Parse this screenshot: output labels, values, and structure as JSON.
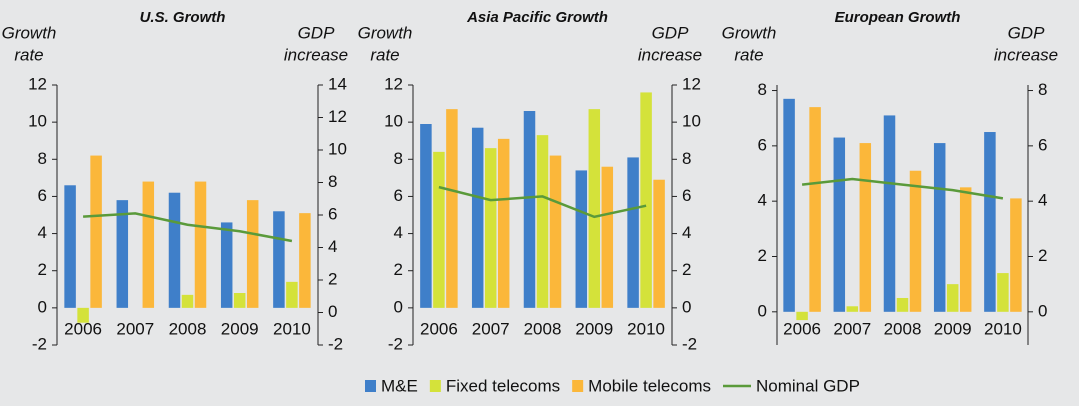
{
  "chart_data": [
    {
      "type": "bar",
      "title": "U.S. Growth",
      "y_label": [
        "Growth",
        "rate"
      ],
      "y2_label": [
        "GDP",
        "increase"
      ],
      "categories": [
        "2006",
        "2007",
        "2008",
        "2009",
        "2010"
      ],
      "ylim": [
        -2,
        12
      ],
      "yticks": [
        -2,
        0,
        2,
        4,
        6,
        8,
        10,
        12
      ],
      "y2lim": [
        -2,
        14
      ],
      "y2ticks": [
        -2,
        0,
        2,
        4,
        6,
        8,
        10,
        12,
        14
      ],
      "series": [
        {
          "name": "M&E",
          "color": "#3f7fc9",
          "values": [
            6.6,
            5.8,
            6.2,
            4.6,
            5.2
          ]
        },
        {
          "name": "Fixed telecoms",
          "color": "#d4e23a",
          "values": [
            -0.8,
            0,
            0.7,
            0.8,
            1.4
          ]
        },
        {
          "name": "Mobile telecoms",
          "color": "#fbb73a",
          "values": [
            8.2,
            6.8,
            6.8,
            5.8,
            5.1
          ]
        },
        {
          "name": "Nominal GDP",
          "color": "#5a9a3a",
          "type": "line",
          "axis": "y2",
          "values": [
            5.9,
            6.1,
            5.4,
            5.0,
            4.4
          ]
        }
      ]
    },
    {
      "type": "bar",
      "title": "Asia Pacific Growth",
      "y_label": [
        "Growth",
        "rate"
      ],
      "y2_label": [
        "GDP",
        "increase"
      ],
      "categories": [
        "2006",
        "2007",
        "2008",
        "2009",
        "2010"
      ],
      "ylim": [
        -2,
        12
      ],
      "yticks": [
        -2,
        0,
        2,
        4,
        6,
        8,
        10,
        12
      ],
      "y2lim": [
        -2,
        12
      ],
      "y2ticks": [
        -2,
        0,
        2,
        4,
        6,
        8,
        10,
        12
      ],
      "series": [
        {
          "name": "M&E",
          "color": "#3f7fc9",
          "values": [
            9.9,
            9.7,
            10.6,
            7.4,
            8.1
          ]
        },
        {
          "name": "Fixed telecoms",
          "color": "#d4e23a",
          "values": [
            8.4,
            8.6,
            9.3,
            10.7,
            11.6
          ]
        },
        {
          "name": "Mobile telecoms",
          "color": "#fbb73a",
          "values": [
            10.7,
            9.1,
            8.2,
            7.6,
            6.9
          ]
        },
        {
          "name": "Nominal GDP",
          "color": "#5a9a3a",
          "type": "line",
          "axis": "y2",
          "values": [
            6.5,
            5.8,
            6.0,
            4.9,
            5.5
          ]
        }
      ]
    },
    {
      "type": "bar",
      "title": "European Growth",
      "y_label": [
        "Growth",
        "rate"
      ],
      "y2_label": [
        "GDP",
        "increase"
      ],
      "categories": [
        "2006",
        "2007",
        "2008",
        "2009",
        "2010"
      ],
      "ylim": [
        -1.2,
        8.2
      ],
      "yticks": [
        0,
        2,
        4,
        6,
        8
      ],
      "y2lim": [
        -1.2,
        8.2
      ],
      "y2ticks": [
        0,
        2,
        4,
        6,
        8
      ],
      "series": [
        {
          "name": "M&E",
          "color": "#3f7fc9",
          "values": [
            7.7,
            6.3,
            7.1,
            6.1,
            6.5
          ]
        },
        {
          "name": "Fixed telecoms",
          "color": "#d4e23a",
          "values": [
            -0.3,
            0.2,
            0.5,
            1.0,
            1.4
          ]
        },
        {
          "name": "Mobile telecoms",
          "color": "#fbb73a",
          "values": [
            7.4,
            6.1,
            5.1,
            4.5,
            4.1
          ]
        },
        {
          "name": "Nominal GDP",
          "color": "#5a9a3a",
          "type": "line",
          "axis": "y2",
          "values": [
            4.6,
            4.8,
            4.6,
            4.4,
            4.1
          ]
        }
      ]
    }
  ]
}
